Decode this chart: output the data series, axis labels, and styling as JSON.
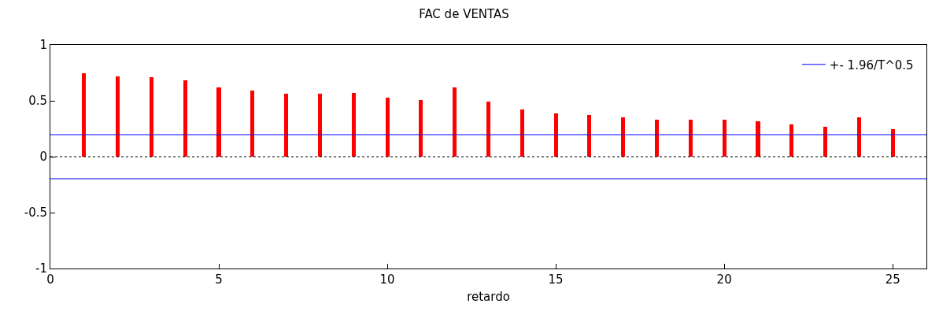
{
  "chart_data": {
    "type": "bar",
    "title": "FAC de VENTAS",
    "xlabel": "retardo",
    "x": [
      1,
      2,
      3,
      4,
      5,
      6,
      7,
      8,
      9,
      10,
      11,
      12,
      13,
      14,
      15,
      16,
      17,
      18,
      19,
      20,
      21,
      22,
      23,
      24,
      25
    ],
    "series": [
      {
        "color": "#ff0000",
        "values": [
          0.75,
          0.72,
          0.71,
          0.68,
          0.62,
          0.59,
          0.56,
          0.56,
          0.57,
          0.53,
          0.51,
          0.62,
          0.49,
          0.42,
          0.39,
          0.37,
          0.35,
          0.33,
          0.33,
          0.33,
          0.32,
          0.29,
          0.27,
          0.35,
          0.25
        ]
      }
    ],
    "xlim": [
      0,
      26
    ],
    "ylim": [
      -1,
      1
    ],
    "xticks": [
      0,
      5,
      10,
      15,
      20,
      25
    ],
    "yticks": [
      -1,
      -0.5,
      0,
      0.5,
      1
    ],
    "ref_lines": [
      {
        "axis": "y",
        "value": 0.197,
        "label": "+- 1.96/T^0.5",
        "color": "#0000ff",
        "line_style": "solid"
      },
      {
        "axis": "y",
        "value": -0.197,
        "label": null,
        "color": "#0000ff",
        "line_style": "solid"
      },
      {
        "axis": "y",
        "value": 0,
        "label": null,
        "color": "#000000",
        "line_style": "dotted"
      }
    ],
    "legend": "top right",
    "grid": false
  }
}
